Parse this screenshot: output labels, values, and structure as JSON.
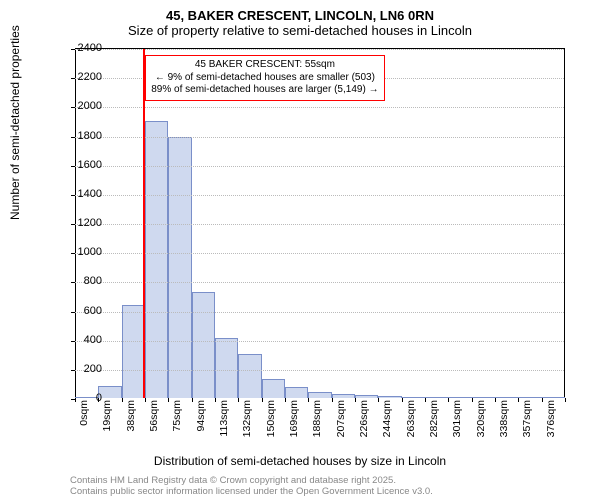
{
  "chart": {
    "type": "histogram",
    "title_main": "45, BAKER CRESCENT, LINCOLN, LN6 0RN",
    "title_sub": "Size of property relative to semi-detached houses in Lincoln",
    "title_fontsize": 13,
    "ylabel": "Number of semi-detached properties",
    "xlabel": "Distribution of semi-detached houses by size in Lincoln",
    "label_fontsize": 12,
    "background_color": "#ffffff",
    "grid_color": "#bbbbbb",
    "axis_color": "#000000",
    "ylim": [
      0,
      2400
    ],
    "ytick_step": 200,
    "yticks": [
      0,
      200,
      400,
      600,
      800,
      1000,
      1200,
      1400,
      1600,
      1800,
      2000,
      2200,
      2400
    ],
    "x_categories": [
      "0sqm",
      "19sqm",
      "38sqm",
      "56sqm",
      "75sqm",
      "94sqm",
      "113sqm",
      "132sqm",
      "150sqm",
      "169sqm",
      "188sqm",
      "207sqm",
      "226sqm",
      "244sqm",
      "263sqm",
      "282sqm",
      "301sqm",
      "320sqm",
      "338sqm",
      "357sqm",
      "376sqm"
    ],
    "x_tick_fontsize": 10.5,
    "values": [
      0,
      80,
      640,
      1900,
      1790,
      730,
      410,
      300,
      130,
      75,
      40,
      30,
      18,
      12,
      10,
      8,
      6,
      4,
      3,
      2,
      2
    ],
    "bar_fill": "#cfd9ef",
    "bar_stroke": "#7a8fc9",
    "bar_width_ratio": 1.0,
    "marker": {
      "x_value_sqm": 55,
      "color": "#ff0000",
      "line_width": 2
    },
    "annotation": {
      "lines": [
        "45 BAKER CRESCENT: 55sqm",
        "← 9% of semi-detached houses are smaller (503)",
        "89% of semi-detached houses are larger (5,149) →"
      ],
      "border_color": "#ff0000",
      "background": "#ffffff",
      "fontsize": 10
    },
    "attribution": {
      "line1": "Contains HM Land Registry data © Crown copyright and database right 2025.",
      "line2": "Contains public sector information licensed under the Open Government Licence v3.0.",
      "color": "#888888",
      "fontsize": 9.5
    }
  }
}
